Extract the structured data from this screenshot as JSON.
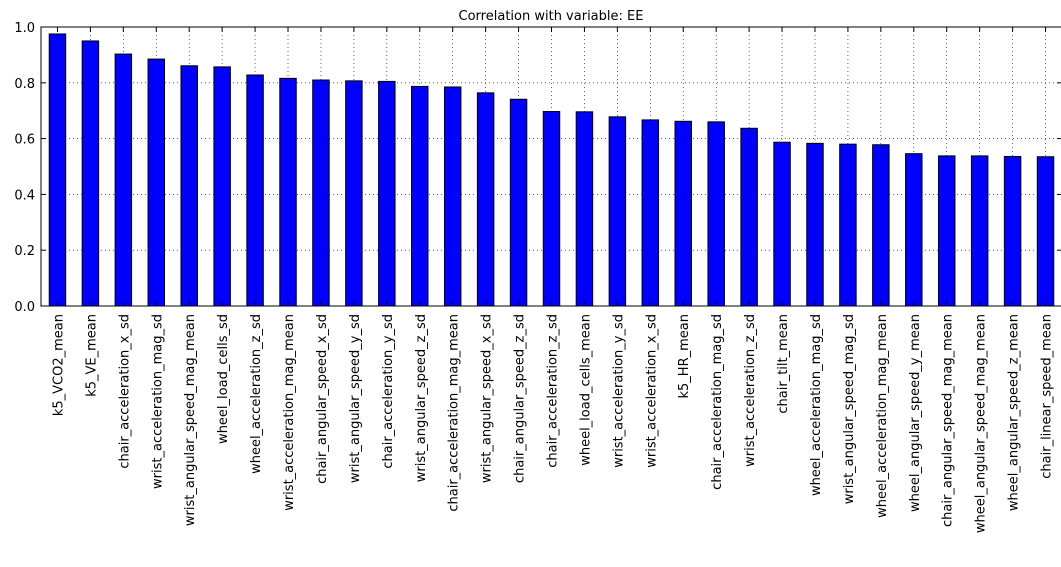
{
  "chart_data": {
    "type": "bar",
    "title": "Correlation with variable: EE",
    "xlabel": "",
    "ylabel": "",
    "ylim": [
      0,
      1.0
    ],
    "yticks": [
      "0.0",
      "0.2",
      "0.4",
      "0.6",
      "0.8",
      "1.0"
    ],
    "grid": true,
    "legend": "none",
    "bar_color": "#0000ff",
    "categories": [
      "k5_VCO2_mean",
      "k5_VE_mean",
      "chair_acceleration_x_sd",
      "wrist_acceleration_mag_sd",
      "wrist_angular_speed_mag_mean",
      "wheel_load_cells_sd",
      "wheel_acceleration_z_sd",
      "wrist_acceleration_mag_mean",
      "chair_angular_speed_x_sd",
      "wrist_angular_speed_y_sd",
      "chair_acceleration_y_sd",
      "wrist_angular_speed_z_sd",
      "chair_acceleration_mag_mean",
      "wrist_angular_speed_x_sd",
      "chair_angular_speed_z_sd",
      "chair_acceleration_z_sd",
      "wheel_load_cells_mean",
      "wrist_acceleration_y_sd",
      "wrist_acceleration_x_sd",
      "k5_HR_mean",
      "chair_acceleration_mag_sd",
      "wrist_acceleration_z_sd",
      "chair_tilt_mean",
      "wheel_acceleration_mag_sd",
      "wrist_angular_speed_mag_sd",
      "wheel_acceleration_mag_mean",
      "wheel_angular_speed_y_mean",
      "chair_angular_speed_mag_mean",
      "wheel_angular_speed_mag_mean",
      "wheel_angular_speed_z_mean",
      "chair_linear_speed_mean"
    ],
    "values": [
      0.975,
      0.95,
      0.903,
      0.885,
      0.861,
      0.857,
      0.828,
      0.816,
      0.81,
      0.807,
      0.805,
      0.787,
      0.785,
      0.764,
      0.741,
      0.697,
      0.696,
      0.678,
      0.667,
      0.662,
      0.66,
      0.637,
      0.587,
      0.583,
      0.58,
      0.578,
      0.546,
      0.538,
      0.538,
      0.536,
      0.535
    ]
  }
}
